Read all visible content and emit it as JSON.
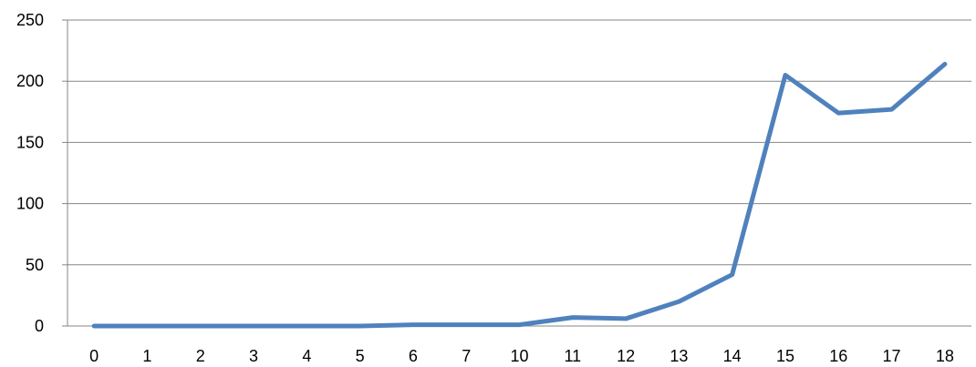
{
  "chart_data": {
    "type": "line",
    "title": "",
    "xlabel": "",
    "ylabel": "",
    "categories": [
      "0",
      "1",
      "2",
      "3",
      "4",
      "5",
      "6",
      "7",
      "10",
      "11",
      "12",
      "13",
      "14",
      "15",
      "16",
      "17",
      "18"
    ],
    "series": [
      {
        "values": [
          0,
          0,
          0,
          0,
          0,
          0,
          1,
          1,
          1,
          7,
          6,
          20,
          42,
          205,
          174,
          177,
          214
        ],
        "color": "#4F81BD"
      }
    ],
    "ylim": [
      0,
      250
    ],
    "yticks": [
      "0",
      "50",
      "100",
      "150",
      "200",
      "250"
    ],
    "grid": true,
    "legend": "none"
  }
}
